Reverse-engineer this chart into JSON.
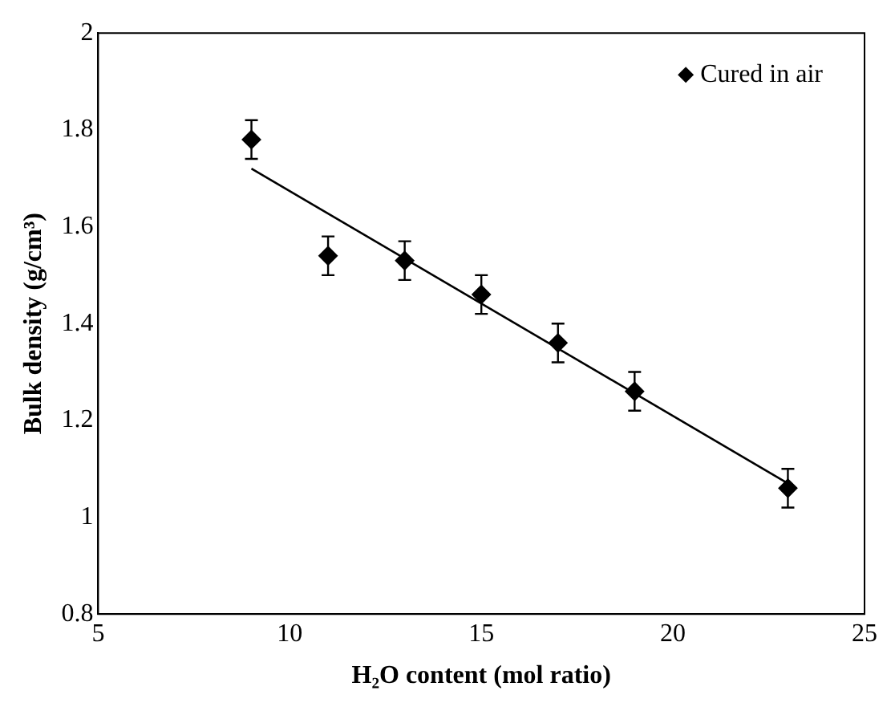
{
  "chart_data": {
    "type": "scatter",
    "xlabel": "H₂O content (mol ratio)",
    "ylabel": "Bulk density (g/cm³)",
    "xlim": [
      5,
      25
    ],
    "xticks": [
      5,
      10,
      15,
      20,
      25
    ],
    "ylim": [
      0.8,
      2
    ],
    "yticks": [
      0.8,
      1,
      1.2,
      1.4,
      1.6,
      1.8,
      2
    ],
    "grid": false,
    "legend": "top right",
    "marker": "diamond",
    "series": [
      {
        "name": "Cured in air",
        "color": "#000000",
        "x": [
          9,
          11,
          13,
          15,
          17,
          19,
          23
        ],
        "values": [
          1.78,
          1.54,
          1.53,
          1.46,
          1.36,
          1.26,
          1.06
        ],
        "errors": [
          0.04,
          0.04,
          0.04,
          0.04,
          0.04,
          0.04,
          0.04
        ]
      },
      {
        "type": "line",
        "color": "#000000",
        "x": [
          9,
          23
        ],
        "values": [
          1.72,
          1.07
        ],
        "line_style": "solid",
        "marker": "none"
      }
    ]
  }
}
